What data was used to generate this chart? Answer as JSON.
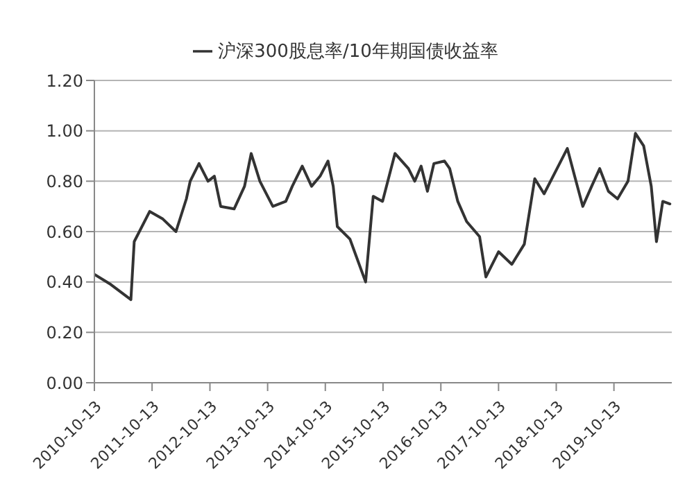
{
  "chart_data": {
    "type": "line",
    "legend": "top",
    "grid": "y",
    "marker": "none",
    "line_style": "solid",
    "x": [
      "2010-10-13",
      "2011-01-25",
      "2011-06-01",
      "2011-06-22",
      "2011-09-28",
      "2011-12-20",
      "2012-03-12",
      "2012-05-17",
      "2012-06-10",
      "2012-08-05",
      "2012-10-01",
      "2012-11-10",
      "2012-12-20",
      "2013-03-15",
      "2013-05-20",
      "2013-07-01",
      "2013-08-25",
      "2013-11-15",
      "2014-02-05",
      "2014-03-18",
      "2014-05-20",
      "2014-07-18",
      "2014-09-10",
      "2014-10-30",
      "2014-12-02",
      "2014-12-28",
      "2015-03-18",
      "2015-06-25",
      "2015-08-12",
      "2015-10-10",
      "2015-12-28",
      "2016-03-22",
      "2016-05-01",
      "2016-06-10",
      "2016-07-20",
      "2016-08-30",
      "2016-11-05",
      "2016-12-08",
      "2017-01-28",
      "2017-03-25",
      "2017-06-15",
      "2017-07-25",
      "2017-10-13",
      "2018-01-05",
      "2018-03-25",
      "2018-05-30",
      "2018-07-28",
      "2018-10-18",
      "2018-12-22",
      "2019-02-15",
      "2019-03-30",
      "2019-05-25",
      "2019-07-15",
      "2019-09-08",
      "2019-11-05",
      "2020-01-10",
      "2020-02-26",
      "2020-04-18",
      "2020-06-05",
      "2020-07-08",
      "2020-08-17",
      "2020-10-01"
    ],
    "series": [
      {
        "name": "沪深300股息率/10年期国债收益率",
        "color": "#333333",
        "values": [
          0.43,
          0.39,
          0.33,
          0.56,
          0.68,
          0.65,
          0.6,
          0.73,
          0.8,
          0.87,
          0.8,
          0.82,
          0.7,
          0.69,
          0.78,
          0.91,
          0.8,
          0.7,
          0.72,
          0.78,
          0.86,
          0.78,
          0.82,
          0.88,
          0.78,
          0.62,
          0.57,
          0.4,
          0.74,
          0.72,
          0.91,
          0.85,
          0.8,
          0.86,
          0.76,
          0.87,
          0.88,
          0.85,
          0.72,
          0.64,
          0.58,
          0.42,
          0.52,
          0.47,
          0.55,
          0.81,
          0.75,
          0.85,
          0.93,
          0.8,
          0.7,
          0.78,
          0.85,
          0.76,
          0.73,
          0.8,
          0.99,
          0.94,
          0.78,
          0.56,
          0.72,
          0.71
        ]
      }
    ],
    "xlim": [
      "2010-10-13",
      "2020-10-13"
    ],
    "xticks": [
      "2010-10-13",
      "2011-10-13",
      "2012-10-13",
      "2013-10-13",
      "2014-10-13",
      "2015-10-13",
      "2016-10-13",
      "2017-10-13",
      "2018-10-13",
      "2019-10-13"
    ],
    "ylim": [
      0,
      1.2
    ],
    "yticks": [
      {
        "value": 0,
        "label": "0.00"
      },
      {
        "value": 0.2,
        "label": "0.20"
      },
      {
        "value": 0.4,
        "label": "0.40"
      },
      {
        "value": 0.6,
        "label": "0.60"
      },
      {
        "value": 0.8,
        "label": "0.80"
      },
      {
        "value": 1,
        "label": "1.00"
      },
      {
        "value": 1.2,
        "label": "1.20"
      }
    ]
  }
}
